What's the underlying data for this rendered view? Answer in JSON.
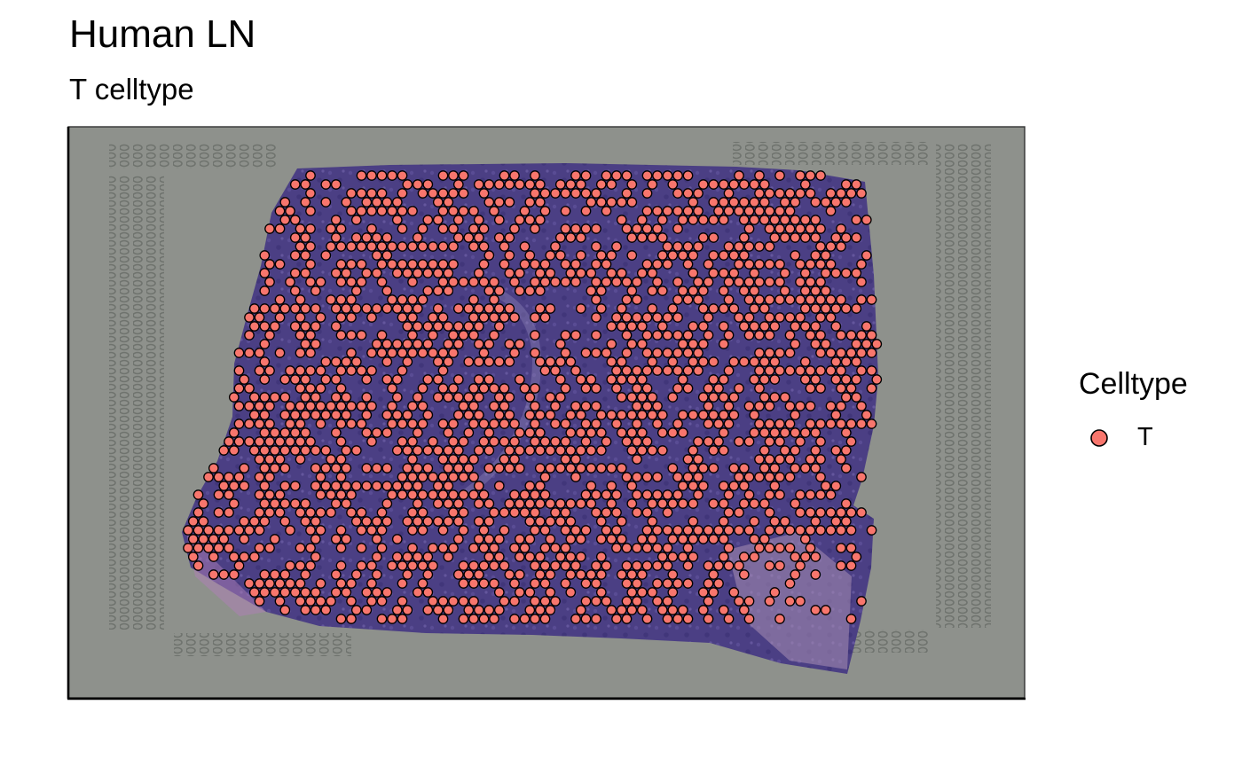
{
  "chart_data": {
    "type": "scatter",
    "title": "Human LN",
    "subtitle": "T celltype",
    "xlabel": "",
    "ylabel": "",
    "legend": {
      "title": "Celltype",
      "placement": "right",
      "entries": [
        {
          "label": "T",
          "color": "#F8766D"
        }
      ]
    },
    "series": [
      {
        "name": "T",
        "color": "#F8766D"
      }
    ],
    "background": "tissue histology image (H&E stained lymph node section)",
    "colors": {
      "point_fill": "#F8766D",
      "point_stroke": "#000000",
      "tissue": "#4b3f84",
      "slide": "#8e918c"
    },
    "grid": false
  }
}
